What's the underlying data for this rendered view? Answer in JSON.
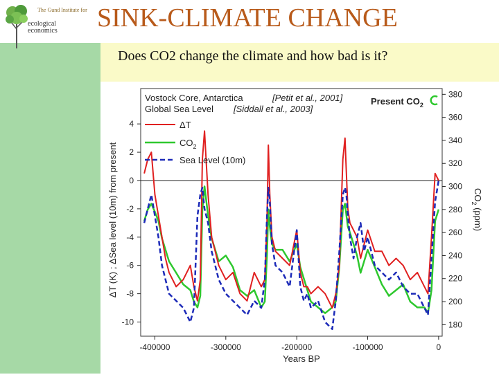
{
  "slide": {
    "title": "SINK-CLIMATE CHANGE",
    "subtitle": "Does CO2 change the climate and how bad is it?"
  },
  "logo": {
    "line1": "The Gund Institute for",
    "line2": "ecological",
    "line3": "economics"
  },
  "colors": {
    "title": "#b85a1a",
    "left_band": "#a6d9a6",
    "subtitle_band": "#fafac8",
    "deltaT": "#e02020",
    "co2": "#2ec82e",
    "sea_level": "#1c2ab8"
  },
  "chart_data": {
    "type": "line",
    "source_labels": [
      "Vostock Core, Antarctica",
      "Global Sea Level"
    ],
    "citations": [
      "[Petit et al., 2001]",
      "[Siddall et al., 2003]"
    ],
    "annotation": "Present CO",
    "annotation_sub": "2",
    "xlabel": "Years BP",
    "ylabel_left": "ΔT (K) ; ΔSea level (10m)  from present",
    "ylabel_right": "CO",
    "ylabel_right_sub": "2",
    "ylabel_right_unit": "(ppm)",
    "xlim": [
      -420000,
      5000
    ],
    "ylim_left": [
      -11,
      6.5
    ],
    "ylim_right": [
      170,
      385
    ],
    "x_ticks": [
      -400000,
      -300000,
      -200000,
      -100000,
      0
    ],
    "x_tick_labels": [
      "-400000",
      "-300000",
      "-200000",
      "-100000",
      "0"
    ],
    "y_left_ticks": [
      4,
      2,
      0,
      -2,
      -4,
      -6,
      -8,
      -10
    ],
    "y_left_tick_labels": [
      "4",
      "2",
      "0",
      "-2",
      "-4",
      "-6",
      "-8",
      "-10"
    ],
    "y_right_ticks": [
      380,
      360,
      340,
      320,
      300,
      280,
      260,
      240,
      220,
      200,
      180
    ],
    "y_right_tick_labels": [
      "380",
      "360",
      "340",
      "320",
      "300",
      "280",
      "260",
      "240",
      "220",
      "200",
      "180"
    ],
    "reference_line_y": 0,
    "legend": [
      "ΔT",
      "CO2",
      "Sea Level (10m)"
    ],
    "legend_sub": [
      "",
      "2",
      ""
    ],
    "legend_display": [
      "ΔT",
      "CO",
      "Sea Level (10m)"
    ],
    "series": [
      {
        "name": "ΔT",
        "axis": "left",
        "x": [
          -415000,
          -410000,
          -405000,
          -400000,
          -395000,
          -390000,
          -385000,
          -380000,
          -370000,
          -360000,
          -350000,
          -345000,
          -340000,
          -336000,
          -333000,
          -330000,
          -325000,
          -320000,
          -310000,
          -300000,
          -290000,
          -280000,
          -270000,
          -260000,
          -250000,
          -245000,
          -242000,
          -240000,
          -238000,
          -235000,
          -230000,
          -220000,
          -210000,
          -200000,
          -195000,
          -190000,
          -185000,
          -180000,
          -170000,
          -160000,
          -150000,
          -145000,
          -140000,
          -135000,
          -132000,
          -130000,
          -128000,
          -125000,
          -120000,
          -115000,
          -110000,
          -105000,
          -100000,
          -90000,
          -80000,
          -70000,
          -60000,
          -50000,
          -40000,
          -30000,
          -20000,
          -15000,
          -10000,
          -5000,
          0
        ],
        "values": [
          0.5,
          1.5,
          2.0,
          -1.0,
          -2.5,
          -4.0,
          -5.5,
          -6.5,
          -7.5,
          -7.0,
          -6.0,
          -7.5,
          -8.5,
          -7.0,
          1.5,
          3.5,
          -1.0,
          -4.0,
          -6.0,
          -7.0,
          -6.5,
          -8.0,
          -8.5,
          -6.5,
          -7.5,
          -7.0,
          -3.0,
          2.5,
          -1.0,
          -4.0,
          -5.0,
          -5.5,
          -6.0,
          -3.5,
          -6.5,
          -7.5,
          -7.5,
          -8.0,
          -7.5,
          -8.0,
          -9.0,
          -8.0,
          -6.0,
          1.5,
          3.0,
          0.5,
          -2.0,
          -3.0,
          -3.5,
          -4.0,
          -5.5,
          -4.5,
          -3.5,
          -5.0,
          -5.0,
          -6.0,
          -5.5,
          -6.0,
          -7.0,
          -6.5,
          -7.5,
          -8.0,
          -4.0,
          0.5,
          0.0
        ]
      },
      {
        "name": "CO2",
        "axis": "right",
        "x": [
          -415000,
          -410000,
          -405000,
          -400000,
          -395000,
          -390000,
          -385000,
          -380000,
          -370000,
          -360000,
          -350000,
          -345000,
          -340000,
          -336000,
          -333000,
          -330000,
          -325000,
          -320000,
          -310000,
          -300000,
          -290000,
          -280000,
          -270000,
          -260000,
          -250000,
          -245000,
          -242000,
          -240000,
          -238000,
          -235000,
          -230000,
          -220000,
          -210000,
          -200000,
          -195000,
          -190000,
          -185000,
          -180000,
          -170000,
          -160000,
          -150000,
          -145000,
          -140000,
          -135000,
          -132000,
          -130000,
          -128000,
          -125000,
          -120000,
          -115000,
          -110000,
          -105000,
          -100000,
          -90000,
          -80000,
          -70000,
          -60000,
          -50000,
          -40000,
          -30000,
          -20000,
          -15000,
          -10000,
          -5000,
          0
        ],
        "values": [
          270,
          280,
          285,
          278,
          270,
          255,
          245,
          235,
          225,
          215,
          210,
          200,
          195,
          205,
          280,
          300,
          275,
          255,
          235,
          240,
          230,
          210,
          205,
          210,
          195,
          200,
          240,
          280,
          265,
          250,
          245,
          245,
          235,
          250,
          230,
          220,
          210,
          200,
          195,
          190,
          195,
          200,
          230,
          280,
          285,
          275,
          265,
          260,
          250,
          240,
          225,
          235,
          245,
          230,
          215,
          205,
          210,
          215,
          200,
          195,
          195,
          190,
          210,
          270,
          280
        ]
      },
      {
        "name": "Sea Level (10m)",
        "axis": "left",
        "x": [
          -415000,
          -410000,
          -405000,
          -400000,
          -395000,
          -390000,
          -385000,
          -380000,
          -370000,
          -360000,
          -350000,
          -345000,
          -340000,
          -336000,
          -333000,
          -330000,
          -325000,
          -320000,
          -310000,
          -300000,
          -290000,
          -280000,
          -270000,
          -260000,
          -250000,
          -245000,
          -242000,
          -240000,
          -238000,
          -235000,
          -230000,
          -220000,
          -210000,
          -200000,
          -195000,
          -190000,
          -185000,
          -180000,
          -170000,
          -160000,
          -150000,
          -145000,
          -140000,
          -135000,
          -132000,
          -130000,
          -128000,
          -125000,
          -120000,
          -115000,
          -110000,
          -105000,
          -100000,
          -90000,
          -80000,
          -70000,
          -60000,
          -50000,
          -40000,
          -30000,
          -20000,
          -15000,
          -10000,
          -5000,
          0
        ],
        "values": [
          -3.0,
          -2.0,
          -1.0,
          -2.5,
          -4.0,
          -6.0,
          -7.0,
          -8.0,
          -8.5,
          -9.0,
          -10.0,
          -9.0,
          -2.5,
          -1.0,
          -0.5,
          -2.0,
          -3.0,
          -5.0,
          -7.0,
          -8.0,
          -8.5,
          -9.0,
          -9.5,
          -8.5,
          -9.0,
          -7.0,
          -2.5,
          -0.5,
          -1.5,
          -4.5,
          -6.0,
          -6.5,
          -7.5,
          -3.5,
          -7.5,
          -8.5,
          -8.0,
          -9.0,
          -8.5,
          -10.0,
          -10.5,
          -8.5,
          -5.0,
          -1.0,
          -0.5,
          -1.0,
          -2.5,
          -4.0,
          -5.5,
          -4.0,
          -3.0,
          -5.0,
          -4.0,
          -6.0,
          -6.5,
          -7.0,
          -6.5,
          -7.5,
          -8.0,
          -8.0,
          -9.0,
          -9.5,
          -5.5,
          -1.5,
          0.0
        ]
      }
    ]
  }
}
